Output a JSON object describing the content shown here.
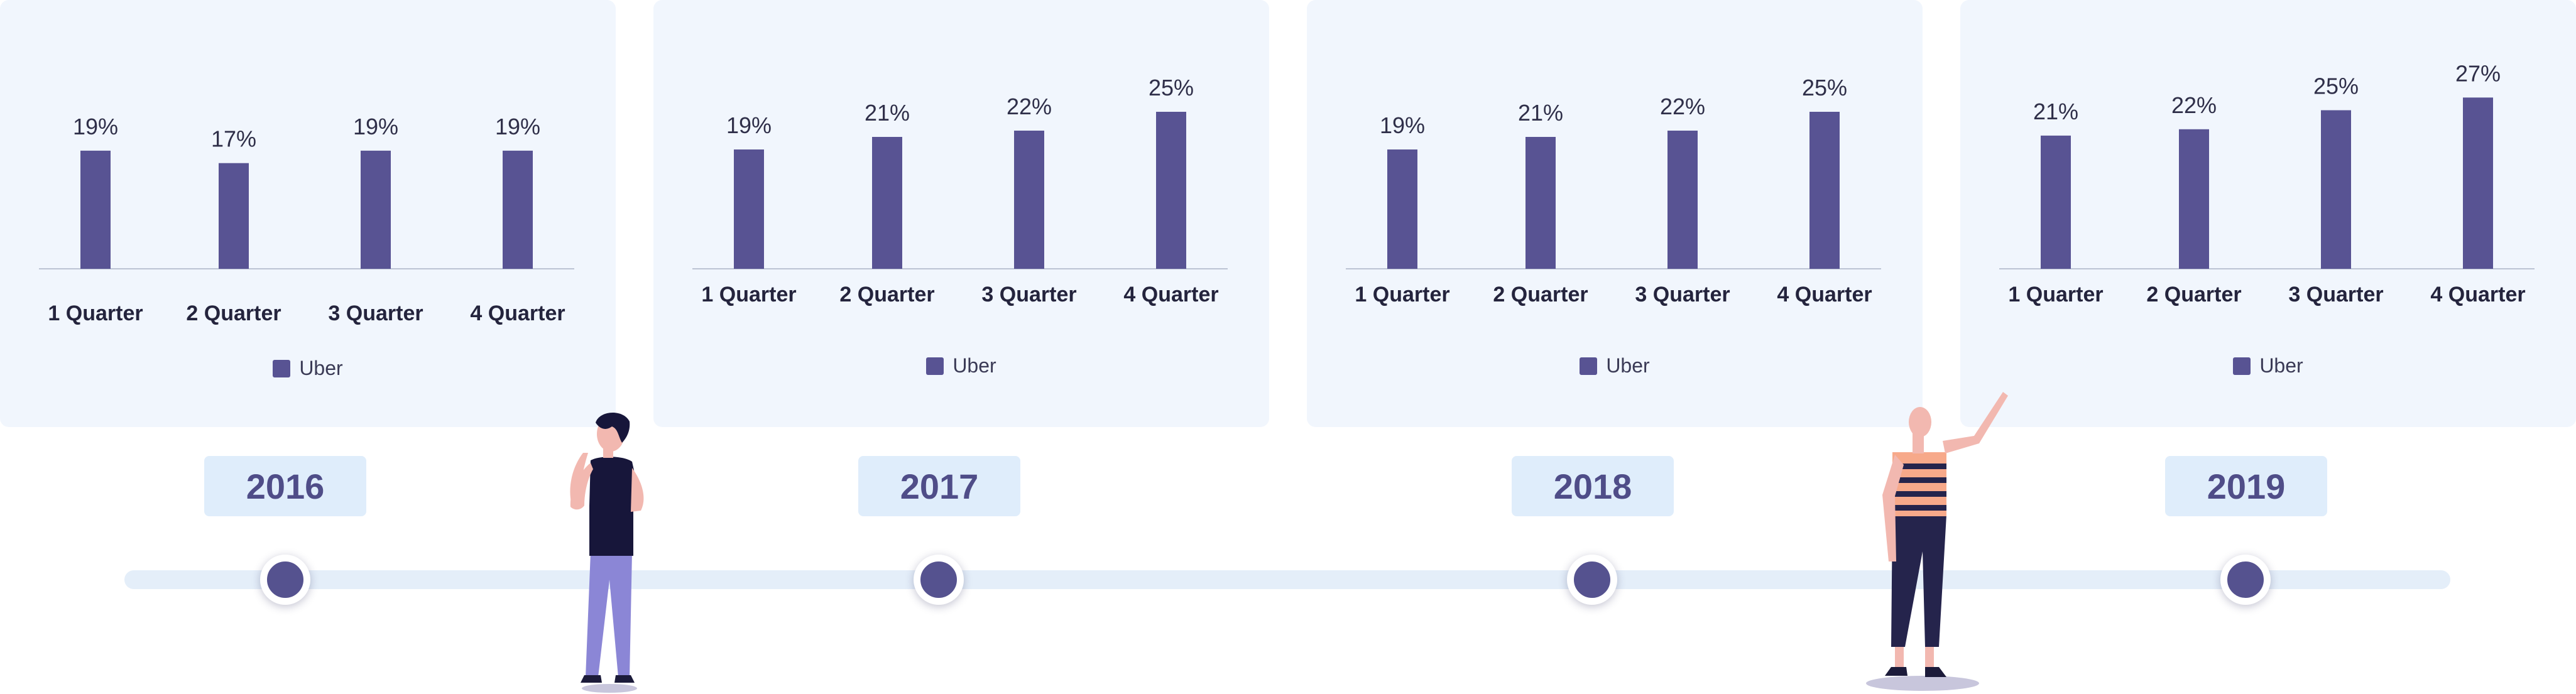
{
  "accent_color": "#585393",
  "panel_background": "#f1f6fd",
  "years": [
    "2016",
    "2017",
    "2018",
    "2019"
  ],
  "legend_label": "Uber",
  "chart_data": [
    {
      "type": "bar",
      "categories": [
        "1 Quarter",
        "2 Quarter",
        "3 Quarter",
        "4 Quarter"
      ],
      "series": [
        {
          "name": "Uber",
          "values": [
            19,
            17,
            19,
            19
          ]
        }
      ],
      "value_suffix": "%",
      "legend": "bottom-center",
      "grid": false,
      "ylim": [
        0,
        30
      ]
    },
    {
      "type": "bar",
      "categories": [
        "1 Quarter",
        "2 Quarter",
        "3 Quarter",
        "4 Quarter"
      ],
      "series": [
        {
          "name": "Uber",
          "values": [
            19,
            21,
            22,
            25
          ]
        }
      ],
      "value_suffix": "%",
      "legend": "bottom-center",
      "grid": false,
      "ylim": [
        0,
        30
      ]
    },
    {
      "type": "bar",
      "categories": [
        "1 Quarter",
        "2 Quarter",
        "3 Quarter",
        "4 Quarter"
      ],
      "series": [
        {
          "name": "Uber",
          "values": [
            19,
            21,
            22,
            25
          ]
        }
      ],
      "value_suffix": "%",
      "legend": "bottom-center",
      "grid": false,
      "ylim": [
        0,
        30
      ]
    },
    {
      "type": "bar",
      "categories": [
        "1 Quarter",
        "2 Quarter",
        "3 Quarter",
        "4 Quarter"
      ],
      "series": [
        {
          "name": "Uber",
          "values": [
            21,
            22,
            25,
            27
          ]
        }
      ],
      "value_suffix": "%",
      "legend": "bottom-center",
      "grid": false,
      "ylim": [
        0,
        30
      ]
    }
  ]
}
